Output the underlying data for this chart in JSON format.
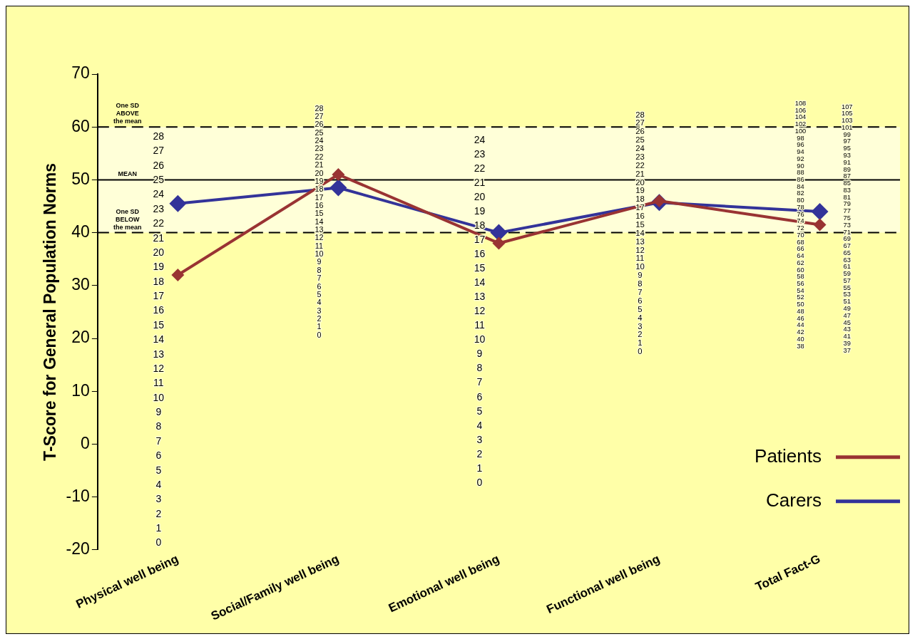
{
  "chart_data": {
    "type": "line",
    "ylabel": "T-Score for General Population Norms",
    "categories": [
      "Physical well being",
      "Social/Family well being",
      "Emotional well being",
      "Functional well being",
      "Total Fact-G"
    ],
    "series": [
      {
        "name": "Patients",
        "color": "#993333",
        "values": [
          32,
          51,
          38,
          46,
          41.5
        ]
      },
      {
        "name": "Carers",
        "color": "#333399",
        "values": [
          45.5,
          48.5,
          40,
          45.7,
          44
        ]
      }
    ],
    "ylim": [
      -20,
      70
    ],
    "yticks": [
      -20,
      -10,
      0,
      10,
      20,
      30,
      40,
      50,
      60,
      70
    ],
    "grid": false,
    "legend": "bottom right",
    "marker": "diamond",
    "line_style": "solid",
    "bands": [
      {
        "axis": "y",
        "from": 40,
        "to": 60,
        "color": "#ffffd8"
      }
    ],
    "ref_lines": [
      {
        "axis": "y",
        "value": 60,
        "label": "One SD ABOVE the mean",
        "line_style": "dashed"
      },
      {
        "axis": "y",
        "value": 50,
        "label": "MEAN",
        "line_style": "solid"
      },
      {
        "axis": "y",
        "value": 40,
        "label": "One SD BELOW the mean",
        "line_style": "dashed"
      }
    ],
    "annotations": [
      "28\n27\n26\n25\n24\n23\n22\n21\n20\n19\n18\n17\n16\n15\n14\n13\n12\n11\n10\n9\n8\n7\n6\n5\n4\n3\n2\n1\n0",
      "28\n27\n26\n25\n24\n23\n22\n21\n20\n19\n18\n17\n16\n15\n14\n13\n12\n11\n10\n9\n8\n7\n6\n5\n4\n3\n2\n1\n0",
      "24\n23\n22\n21\n20\n19\n18\n17\n16\n15\n14\n13\n12\n11\n10\n9\n8\n7\n6\n5\n4\n3\n2\n1\n0",
      "28\n27\n26\n25\n24\n23\n22\n21\n20\n19\n18\n17\n16\n15\n14\n13\n12\n11\n10\n9\n8\n7\n6\n5\n4\n3\n2\n1\n0",
      "108\n106\n104\n102\n100\n98\n96\n94\n92\n90\n88\n86\n84\n82\n80\n78\n76\n74\n72\n70\n68\n66\n64\n62\n60\n58\n56\n54\n52\n50\n48\n46\n44\n42\n40\n38",
      "107\n105\n103\n101\n99\n97\n95\n93\n91\n89\n87\n85\n83\n81\n79\n77\n75\n73\n71\n69\n67\n65\n63\n61\n59\n57\n55\n53\n51\n49\n47\n45\n43\n41\n39\n37"
    ]
  }
}
